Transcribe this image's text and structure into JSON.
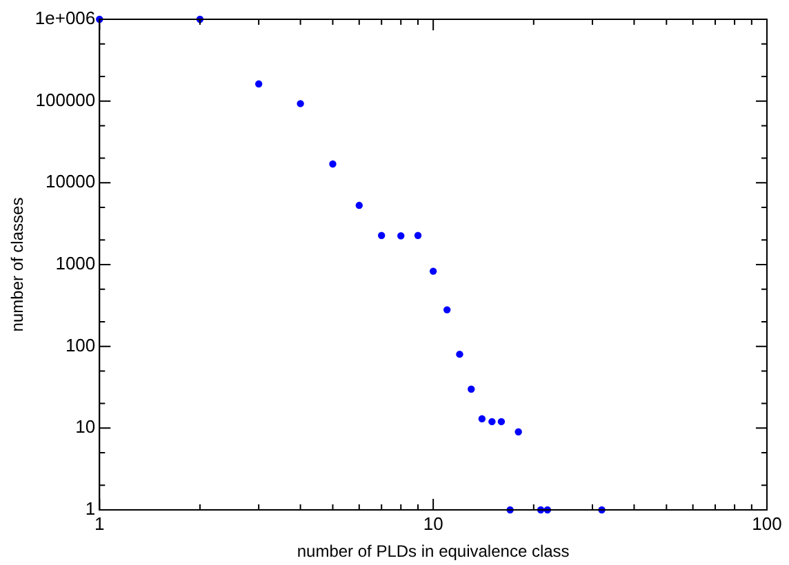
{
  "chart_data": {
    "type": "scatter",
    "xlabel": "number of PLDs in equivalence class",
    "ylabel": "number of classes",
    "series": [
      {
        "color": "#0000ff",
        "x": [
          1,
          2,
          3,
          4,
          5,
          6,
          7,
          8,
          9,
          10,
          11,
          12,
          13,
          14,
          15,
          16,
          17,
          18,
          21,
          22,
          32
        ],
        "values": [
          1000000,
          1000000,
          162000,
          93000,
          17000,
          5300,
          2270,
          2250,
          2270,
          830,
          280,
          80,
          30,
          13,
          12,
          12,
          1,
          9,
          1,
          1,
          1
        ]
      }
    ],
    "log": "xy",
    "marker": "circle",
    "grid": false,
    "legend": false,
    "xlim": [
      1,
      100
    ],
    "ylim": [
      1,
      1000000
    ],
    "xticks": [
      1,
      {
        "value": 2,
        "label": null
      },
      {
        "value": 3,
        "label": null
      },
      {
        "value": 4,
        "label": null
      },
      {
        "value": 5,
        "label": null
      },
      {
        "value": 6,
        "label": null
      },
      {
        "value": 7,
        "label": null
      },
      {
        "value": 8,
        "label": null
      },
      {
        "value": 9,
        "label": null
      },
      10,
      {
        "value": 20,
        "label": null
      },
      {
        "value": 30,
        "label": null
      },
      {
        "value": 40,
        "label": null
      },
      {
        "value": 50,
        "label": null
      },
      {
        "value": 60,
        "label": null
      },
      {
        "value": 70,
        "label": null
      },
      {
        "value": 80,
        "label": null
      },
      {
        "value": 90,
        "label": null
      },
      100
    ],
    "yticks": [
      1,
      10,
      100,
      1000,
      10000,
      100000,
      {
        "value": 1000000,
        "label": "1e+006"
      }
    ]
  }
}
